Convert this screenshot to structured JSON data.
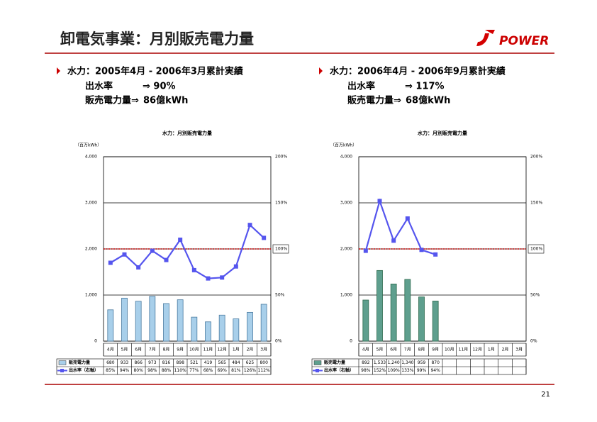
{
  "title": "卸電気事業：月別販売電力量",
  "logo": "POWER",
  "page_number": "21",
  "summaries": [
    {
      "heading": "水力：2005年4月 - 2006年3月累計実績",
      "lines": [
        {
          "label": "出水率",
          "value": "⇒ 90%"
        },
        {
          "label": "販売電力量⇒",
          "value": "86億kWh"
        }
      ]
    },
    {
      "heading": "水力：2006年4月 - 2006年9月累計実績",
      "lines": [
        {
          "label": "出水率",
          "value": "⇒ 117%"
        },
        {
          "label": "販売電力量⇒",
          "value": "68億kWh"
        }
      ]
    }
  ],
  "chart_data": [
    {
      "type": "bar",
      "title": "水力：月別販売電力量",
      "y_axis_label": "（百万kWh）",
      "categories": [
        "4月",
        "5月",
        "6月",
        "7月",
        "8月",
        "9月",
        "10月",
        "11月",
        "12月",
        "1月",
        "2月",
        "3月"
      ],
      "series": [
        {
          "name": "販売電力量",
          "type": "bar",
          "color": "#a8cfea",
          "values": [
            680,
            933,
            866,
            973,
            816,
            898,
            521,
            419,
            565,
            484,
            625,
            800
          ]
        },
        {
          "name": "出水率（右軸）",
          "type": "line",
          "axis": "y2",
          "color": "#5555ee",
          "values": [
            85,
            94,
            80,
            98,
            88,
            110,
            77,
            68,
            69,
            81,
            126,
            112
          ],
          "value_labels": [
            "85%",
            "94%",
            "80%",
            "98%",
            "88%",
            "110%",
            "77%",
            "68%",
            "69%",
            "81%",
            "126%",
            "112%"
          ]
        }
      ],
      "ylim": [
        0,
        4000
      ],
      "yticks": [
        0,
        {
          "value": 1000,
          "label": "1,000"
        },
        {
          "value": 2000,
          "label": "2,000"
        },
        {
          "value": 3000,
          "label": "3,000"
        },
        {
          "value": 4000,
          "label": "4,000"
        }
      ],
      "y2lim": [
        0,
        200
      ],
      "y2ticks": [
        {
          "value": 0,
          "label": "0%"
        },
        {
          "value": 50,
          "label": "50%"
        },
        {
          "value": 100,
          "label": "100%"
        },
        {
          "value": 150,
          "label": "150%"
        },
        {
          "value": 200,
          "label": "200%"
        }
      ],
      "reference_y2": 100,
      "grid": true
    },
    {
      "type": "bar",
      "title": "水力：月別販売電力量",
      "y_axis_label": "（百万kWh）",
      "categories": [
        "4月",
        "5月",
        "6月",
        "7月",
        "8月",
        "9月",
        "10月",
        "11月",
        "12月",
        "1月",
        "2月",
        "3月"
      ],
      "series": [
        {
          "name": "販売電力量",
          "type": "bar",
          "color": "#5e9f8e",
          "values": [
            892,
            1533,
            1240,
            1340,
            959,
            870,
            null,
            null,
            null,
            null,
            null,
            null
          ],
          "value_labels": [
            "892",
            "1,533",
            "1,240",
            "1,340",
            "959",
            "870",
            null,
            null,
            null,
            null,
            null,
            null
          ]
        },
        {
          "name": "出水率（右軸）",
          "type": "line",
          "axis": "y2",
          "color": "#5555ee",
          "values": [
            98,
            152,
            109,
            133,
            99,
            94,
            null,
            null,
            null,
            null,
            null,
            null
          ],
          "value_labels": [
            "98%",
            "152%",
            "109%",
            "133%",
            "99%",
            "94%",
            null,
            null,
            null,
            null,
            null,
            null
          ]
        }
      ],
      "ylim": [
        0,
        4000
      ],
      "yticks": [
        0,
        {
          "value": 1000,
          "label": "1,000"
        },
        {
          "value": 2000,
          "label": "2,000"
        },
        {
          "value": 3000,
          "label": "3,000"
        },
        {
          "value": 4000,
          "label": "4,000"
        }
      ],
      "y2lim": [
        0,
        200
      ],
      "y2ticks": [
        {
          "value": 0,
          "label": "0%"
        },
        {
          "value": 50,
          "label": "50%"
        },
        {
          "value": 100,
          "label": "100%"
        },
        {
          "value": 150,
          "label": "150%"
        },
        {
          "value": 200,
          "label": "200%"
        }
      ],
      "reference_y2": 100,
      "grid": true
    }
  ]
}
